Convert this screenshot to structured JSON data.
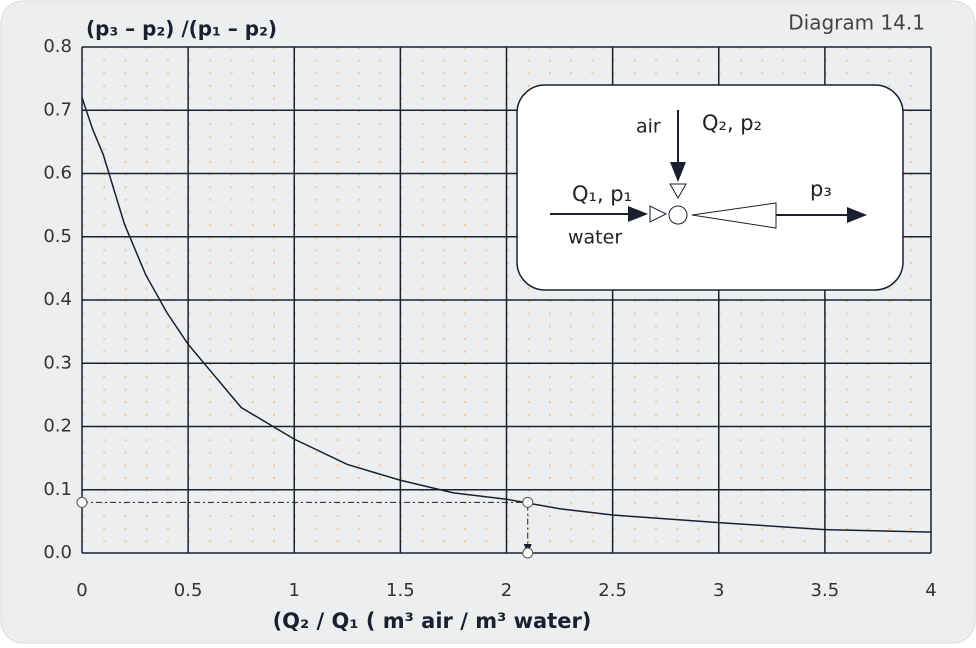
{
  "chart_data": {
    "type": "line",
    "title": "Diagram 14.1",
    "y_label": "(p₃ – p₂) /(p₁ – p₂)",
    "x_label": "(Q₂ / Q₁  ( m³ air / m³ water)",
    "xlim": [
      0,
      4
    ],
    "ylim": [
      0,
      0.8
    ],
    "xticks": [
      0,
      0.5,
      1,
      1.5,
      2,
      2.5,
      3,
      3.5,
      4
    ],
    "yticks": [
      {
        "value": 0,
        "label": "0.0"
      },
      0.1,
      0.2,
      0.3,
      0.4,
      0.5,
      0.6,
      0.7,
      0.8
    ],
    "grid": true,
    "series": [
      {
        "color": "#1a2030",
        "x": [
          0,
          0.05,
          0.1,
          0.2,
          0.3,
          0.4,
          0.5,
          0.6,
          0.75,
          1.0,
          1.25,
          1.5,
          1.75,
          2.0,
          2.25,
          2.5,
          3.0,
          3.5,
          4.0
        ],
        "values": [
          0.72,
          0.67,
          0.63,
          0.52,
          0.44,
          0.38,
          0.33,
          0.29,
          0.23,
          0.18,
          0.14,
          0.115,
          0.095,
          0.085,
          0.07,
          0.06,
          0.048,
          0.037,
          0.033
        ]
      }
    ],
    "guide": {
      "x": [
        0,
        2.1,
        2.1
      ],
      "y": [
        0.08,
        0.08,
        0
      ]
    },
    "inset": {
      "air": "air",
      "gas": "Q₂, p₂",
      "liquid": "Q₁, p₁",
      "water": "water",
      "outlet": "p₃"
    }
  }
}
